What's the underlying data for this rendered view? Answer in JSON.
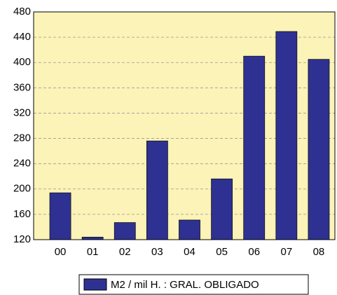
{
  "chart_data": {
    "type": "bar",
    "categories": [
      "00",
      "01",
      "02",
      "03",
      "04",
      "05",
      "06",
      "07",
      "08"
    ],
    "series": [
      {
        "name": "M2 / mil H. : GRAL. OBLIGADO",
        "color": "#2e3192",
        "values": [
          194,
          124,
          147,
          276,
          151,
          216,
          410,
          449,
          405
        ]
      }
    ],
    "ylim": [
      120,
      480
    ],
    "yticks": [
      120,
      160,
      200,
      240,
      280,
      320,
      360,
      400,
      440,
      480
    ],
    "grid": true,
    "legend": "bottom"
  }
}
